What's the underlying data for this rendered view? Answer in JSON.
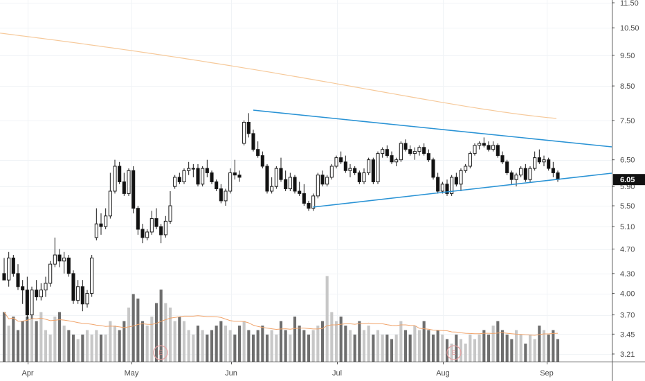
{
  "chart_data": {
    "type": "candlestick",
    "price_axis": {
      "ticks": [
        "11.50",
        "10.50",
        "9.50",
        "8.50",
        "7.50",
        "6.50",
        "5.90",
        "5.50",
        "5.10",
        "4.70",
        "4.30",
        "4.00",
        "3.70",
        "3.45",
        "3.21"
      ],
      "scale": "log",
      "ylim": [
        3.1,
        11.6
      ]
    },
    "time_axis": {
      "months": [
        "Apr",
        "May",
        "Jun",
        "Jul",
        "Aug",
        "Sep"
      ]
    },
    "last_price": "6.05",
    "earnings_marker": "E",
    "candles": [
      [
        4.3,
        4.55,
        4.2,
        4.2
      ],
      [
        4.2,
        4.65,
        4.1,
        4.55
      ],
      [
        4.55,
        4.6,
        4.25,
        4.3
      ],
      [
        4.3,
        4.45,
        4.05,
        4.1
      ],
      [
        4.1,
        4.2,
        3.85,
        4.05
      ],
      [
        4.05,
        4.25,
        3.65,
        3.7
      ],
      [
        3.7,
        4.1,
        3.65,
        4.05
      ],
      [
        4.05,
        4.2,
        3.9,
        3.95
      ],
      [
        3.95,
        4.15,
        3.9,
        4.05
      ],
      [
        4.05,
        4.25,
        3.95,
        4.15
      ],
      [
        4.15,
        4.5,
        4.1,
        4.45
      ],
      [
        4.45,
        4.9,
        4.4,
        4.6
      ],
      [
        4.6,
        4.7,
        4.4,
        4.5
      ],
      [
        4.5,
        4.65,
        4.3,
        4.55
      ],
      [
        4.55,
        4.6,
        4.25,
        4.3
      ],
      [
        4.3,
        4.35,
        3.85,
        3.9
      ],
      [
        3.9,
        4.2,
        3.85,
        4.1
      ],
      [
        4.1,
        4.2,
        3.75,
        3.85
      ],
      [
        3.85,
        4.05,
        3.8,
        4.0
      ],
      [
        4.0,
        4.6,
        3.95,
        4.55
      ],
      [
        4.9,
        5.45,
        4.85,
        5.15
      ],
      [
        5.15,
        5.35,
        4.95,
        5.1
      ],
      [
        5.1,
        5.45,
        5.05,
        5.3
      ],
      [
        5.3,
        6.2,
        5.25,
        5.8
      ],
      [
        5.8,
        6.5,
        5.75,
        6.35
      ],
      [
        6.35,
        6.45,
        5.95,
        6.0
      ],
      [
        6.0,
        6.2,
        5.7,
        5.75
      ],
      [
        5.75,
        6.3,
        5.7,
        6.25
      ],
      [
        6.25,
        6.35,
        5.35,
        5.45
      ],
      [
        5.45,
        5.5,
        4.95,
        5.05
      ],
      [
        5.05,
        5.15,
        4.8,
        4.9
      ],
      [
        4.9,
        5.05,
        4.85,
        5.0
      ],
      [
        5.0,
        5.4,
        4.95,
        5.25
      ],
      [
        5.25,
        5.45,
        5.05,
        5.1
      ],
      [
        5.1,
        5.15,
        4.8,
        4.95
      ],
      [
        4.95,
        5.3,
        4.9,
        5.2
      ],
      [
        5.2,
        5.8,
        5.15,
        5.5
      ],
      [
        5.9,
        6.15,
        5.85,
        6.1
      ],
      [
        6.1,
        6.2,
        5.95,
        6.0
      ],
      [
        6.0,
        6.3,
        5.95,
        6.25
      ],
      [
        6.25,
        6.45,
        6.15,
        6.3
      ],
      [
        6.3,
        6.4,
        6.1,
        6.3
      ],
      [
        6.3,
        6.4,
        5.9,
        5.95
      ],
      [
        5.95,
        6.35,
        5.9,
        6.3
      ],
      [
        6.3,
        6.5,
        6.1,
        6.2
      ],
      [
        6.2,
        6.25,
        5.95,
        6.0
      ],
      [
        6.0,
        6.05,
        5.8,
        5.85
      ],
      [
        5.85,
        5.95,
        5.55,
        5.6
      ],
      [
        5.6,
        5.85,
        5.5,
        5.8
      ],
      [
        5.8,
        6.3,
        5.75,
        6.2
      ],
      [
        6.2,
        6.5,
        6.05,
        6.15
      ],
      [
        6.15,
        6.25,
        6.0,
        6.1
      ],
      [
        6.9,
        7.5,
        6.85,
        7.45
      ],
      [
        7.45,
        7.7,
        7.05,
        7.15
      ],
      [
        7.15,
        7.25,
        6.7,
        6.75
      ],
      [
        6.75,
        6.95,
        6.55,
        6.6
      ],
      [
        6.6,
        6.7,
        6.3,
        6.35
      ],
      [
        6.35,
        6.4,
        5.75,
        5.8
      ],
      [
        5.8,
        6.1,
        5.75,
        5.9
      ],
      [
        5.9,
        6.35,
        5.85,
        6.3
      ],
      [
        6.3,
        6.55,
        6.0,
        6.05
      ],
      [
        6.05,
        6.25,
        5.8,
        5.85
      ],
      [
        5.85,
        6.2,
        5.8,
        6.1
      ],
      [
        6.1,
        6.15,
        5.75,
        5.8
      ],
      [
        5.8,
        6.0,
        5.7,
        5.75
      ],
      [
        5.75,
        5.95,
        5.5,
        5.55
      ],
      [
        5.55,
        5.6,
        5.4,
        5.45
      ],
      [
        5.45,
        5.75,
        5.4,
        5.7
      ],
      [
        5.7,
        6.2,
        5.65,
        6.15
      ],
      [
        6.15,
        6.25,
        5.9,
        5.95
      ],
      [
        5.95,
        6.15,
        5.9,
        6.1
      ],
      [
        6.1,
        6.4,
        6.05,
        6.35
      ],
      [
        6.35,
        6.6,
        6.3,
        6.55
      ],
      [
        6.55,
        6.7,
        6.4,
        6.45
      ],
      [
        6.45,
        6.6,
        6.2,
        6.25
      ],
      [
        6.25,
        6.4,
        6.1,
        6.3
      ],
      [
        6.3,
        6.35,
        6.15,
        6.2
      ],
      [
        6.2,
        6.25,
        5.95,
        6.0
      ],
      [
        6.0,
        6.3,
        5.95,
        6.2
      ],
      [
        6.2,
        6.55,
        6.15,
        6.5
      ],
      [
        6.5,
        6.55,
        5.95,
        6.0
      ],
      [
        6.0,
        6.7,
        5.95,
        6.65
      ],
      [
        6.65,
        6.8,
        6.55,
        6.75
      ],
      [
        6.75,
        6.85,
        6.55,
        6.6
      ],
      [
        6.6,
        6.7,
        6.4,
        6.45
      ],
      [
        6.45,
        6.55,
        6.35,
        6.5
      ],
      [
        6.5,
        6.95,
        6.45,
        6.9
      ],
      [
        6.9,
        7.0,
        6.7,
        6.75
      ],
      [
        6.75,
        6.85,
        6.6,
        6.65
      ],
      [
        6.65,
        6.8,
        6.5,
        6.7
      ],
      [
        6.7,
        6.85,
        6.6,
        6.8
      ],
      [
        6.8,
        6.9,
        6.6,
        6.65
      ],
      [
        6.65,
        6.75,
        6.45,
        6.5
      ],
      [
        6.5,
        6.55,
        6.05,
        6.1
      ],
      [
        6.1,
        6.2,
        5.75,
        5.8
      ],
      [
        5.8,
        6.0,
        5.75,
        5.95
      ],
      [
        5.95,
        6.05,
        5.7,
        5.75
      ],
      [
        5.75,
        6.15,
        5.7,
        6.1
      ],
      [
        6.1,
        6.2,
        5.9,
        5.95
      ],
      [
        5.95,
        6.3,
        5.8,
        6.25
      ],
      [
        6.25,
        6.4,
        6.2,
        6.35
      ],
      [
        6.35,
        6.7,
        6.3,
        6.65
      ],
      [
        6.65,
        6.9,
        6.6,
        6.85
      ],
      [
        6.85,
        6.95,
        6.75,
        6.9
      ],
      [
        6.9,
        7.05,
        6.8,
        6.85
      ],
      [
        6.85,
        6.95,
        6.7,
        6.75
      ],
      [
        6.75,
        6.95,
        6.7,
        6.85
      ],
      [
        6.85,
        6.9,
        6.55,
        6.6
      ],
      [
        6.6,
        6.7,
        6.4,
        6.45
      ],
      [
        6.45,
        6.5,
        6.15,
        6.2
      ],
      [
        6.2,
        6.25,
        5.95,
        6.05
      ],
      [
        6.05,
        6.2,
        5.9,
        6.15
      ],
      [
        6.15,
        6.35,
        6.1,
        6.3
      ],
      [
        6.3,
        6.4,
        6.0,
        6.05
      ],
      [
        6.05,
        6.35,
        6.0,
        6.3
      ],
      [
        6.3,
        6.7,
        6.25,
        6.55
      ],
      [
        6.55,
        6.75,
        6.4,
        6.45
      ],
      [
        6.45,
        6.6,
        6.35,
        6.5
      ],
      [
        6.5,
        6.55,
        6.25,
        6.3
      ],
      [
        6.3,
        6.45,
        6.1,
        6.2
      ],
      [
        6.2,
        6.25,
        6.0,
        6.05
      ]
    ],
    "volume_relative": [
      0.55,
      0.4,
      0.5,
      0.35,
      0.45,
      0.5,
      0.6,
      0.45,
      0.55,
      0.35,
      0.3,
      0.5,
      0.55,
      0.4,
      0.35,
      0.3,
      0.25,
      0.3,
      0.35,
      0.3,
      0.35,
      0.3,
      0.3,
      0.45,
      0.4,
      0.35,
      0.45,
      0.6,
      0.75,
      0.7,
      0.45,
      0.4,
      0.5,
      0.65,
      0.8,
      0.65,
      0.6,
      0.45,
      0.5,
      0.45,
      0.35,
      0.3,
      0.4,
      0.35,
      0.3,
      0.35,
      0.4,
      0.45,
      0.4,
      0.35,
      0.3,
      0.4,
      0.45,
      0.35,
      0.3,
      0.35,
      0.4,
      0.3,
      0.35,
      0.3,
      0.45,
      0.35,
      0.3,
      0.5,
      0.4,
      0.35,
      0.3,
      0.35,
      0.4,
      0.45,
      0.95,
      0.55,
      0.45,
      0.5,
      0.4,
      0.35,
      0.3,
      0.45,
      0.35,
      0.4,
      0.3,
      0.35,
      0.3,
      0.3,
      0.25,
      0.3,
      0.45,
      0.35,
      0.3,
      0.4,
      0.35,
      0.45,
      0.35,
      0.3,
      0.35,
      0.3,
      0.25,
      0.2,
      0.3,
      0.25,
      0.2,
      0.3,
      0.25,
      0.3,
      0.35,
      0.3,
      0.4,
      0.45,
      0.35,
      0.3,
      0.25,
      0.35,
      0.3,
      0.2,
      0.3,
      0.25,
      0.4,
      0.35,
      0.3,
      0.35,
      0.25
    ]
  }
}
